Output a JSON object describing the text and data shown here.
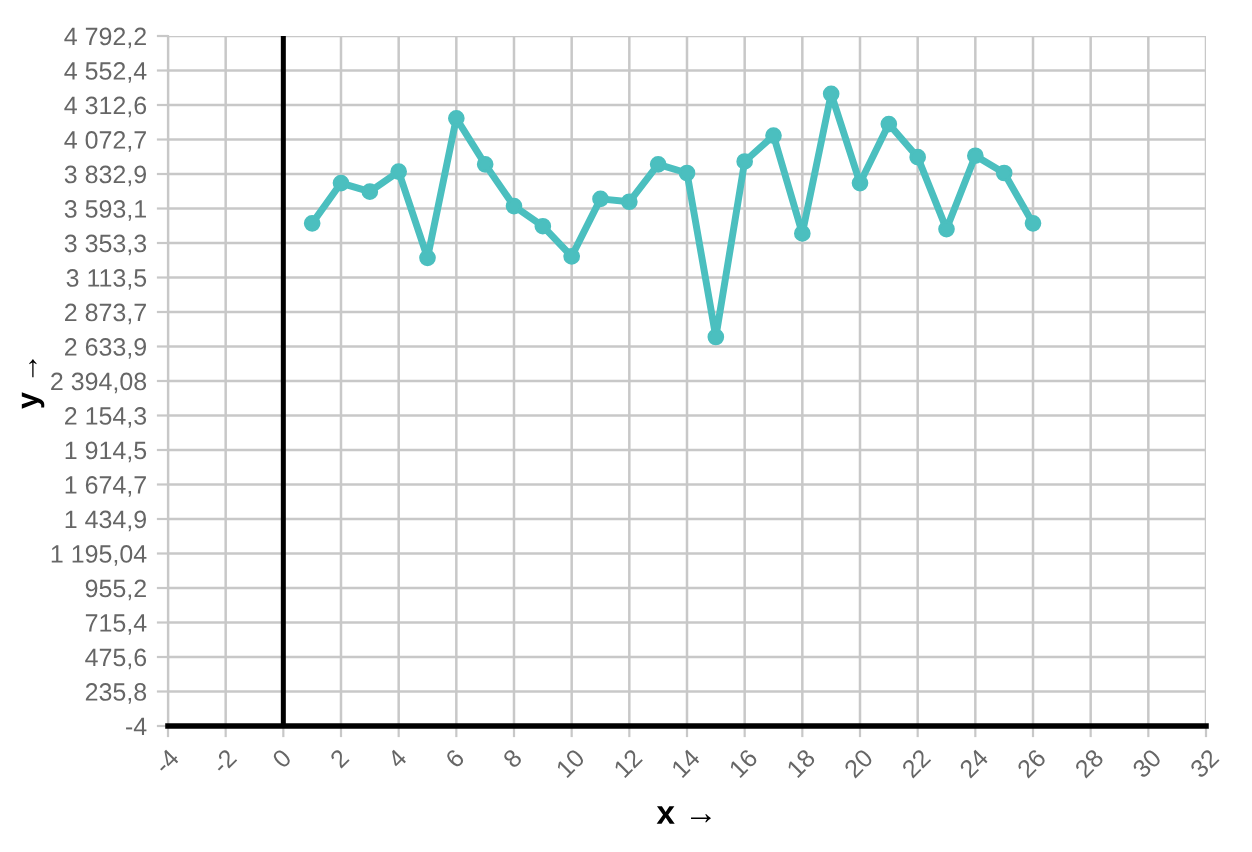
{
  "chart_data": {
    "type": "line",
    "xlabel": "x →",
    "ylabel": "y →",
    "x": [
      1,
      2,
      3,
      4,
      5,
      6,
      7,
      8,
      9,
      10,
      11,
      12,
      13,
      14,
      15,
      16,
      17,
      18,
      19,
      20,
      21,
      22,
      23,
      24,
      25,
      26
    ],
    "series": [
      {
        "color": "#4bbfbf",
        "values": [
          3490,
          3770,
          3710,
          3850,
          3250,
          4220,
          3900,
          3610,
          3470,
          3260,
          3660,
          3640,
          3900,
          3840,
          2700,
          3920,
          4100,
          3420,
          4390,
          3770,
          4180,
          3950,
          3450,
          3960,
          3840,
          3490
        ]
      }
    ],
    "xlim": [
      -4,
      32
    ],
    "xticks": [
      -4,
      -2,
      0,
      2,
      4,
      6,
      8,
      10,
      12,
      14,
      16,
      18,
      20,
      22,
      24,
      26,
      28,
      30,
      32
    ],
    "ylim": [
      -4,
      4792.2
    ],
    "yticks": [
      -4,
      {
        "value": 235.8,
        "label": "235,8"
      },
      {
        "value": 475.6,
        "label": "475,6"
      },
      {
        "value": 715.4,
        "label": "715,4"
      },
      {
        "value": 955.2,
        "label": "955,2"
      },
      {
        "value": 1195.04,
        "label": "1 195,04"
      },
      {
        "value": 1434.9,
        "label": "1 434,9"
      },
      {
        "value": 1674.7,
        "label": "1 674,7"
      },
      {
        "value": 1914.5,
        "label": "1 914,5"
      },
      {
        "value": 2154.3,
        "label": "2 154,3"
      },
      {
        "value": 2394.08,
        "label": "2 394,08"
      },
      {
        "value": 2633.9,
        "label": "2 633,9"
      },
      {
        "value": 2873.7,
        "label": "2 873,7"
      },
      {
        "value": 3113.5,
        "label": "3 113,5"
      },
      {
        "value": 3353.3,
        "label": "3 353,3"
      },
      {
        "value": 3593.1,
        "label": "3 593,1"
      },
      {
        "value": 3832.9,
        "label": "3 832,9"
      },
      {
        "value": 4072.7,
        "label": "4 072,7"
      },
      {
        "value": 4312.6,
        "label": "4 312,6"
      },
      {
        "value": 4552.4,
        "label": "4 552,4"
      },
      {
        "value": 4792.2,
        "label": "4 792,2"
      }
    ],
    "ref_lines": [
      {
        "axis": "x",
        "value": 0,
        "color": "#000000"
      }
    ],
    "grid": true,
    "marker": "circle",
    "line_style": "solid"
  }
}
